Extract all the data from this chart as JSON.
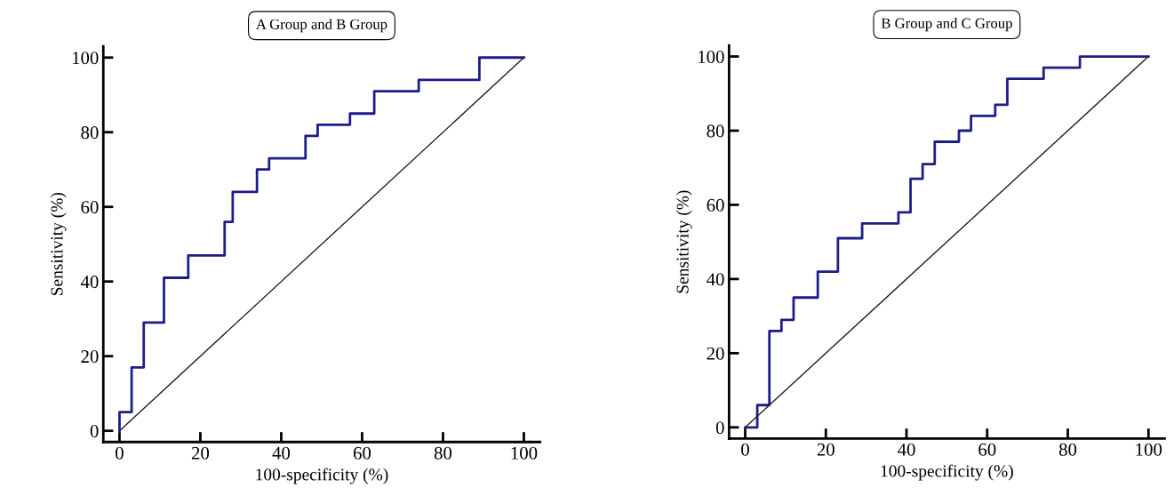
{
  "chart_data": [
    {
      "type": "step",
      "title": "A Group and B Group",
      "xlabel": "100-specificity (%)",
      "ylabel": "Sensitivity (%)",
      "xlim": [
        -4,
        104
      ],
      "ylim": [
        -3,
        103
      ],
      "xticks": [
        0,
        20,
        40,
        60,
        80,
        100
      ],
      "yticks": [
        0,
        20,
        40,
        60,
        80,
        100
      ],
      "grid": false,
      "legend": false,
      "series": [
        {
          "color": "#1c1c8a",
          "x": [
            0,
            0,
            3,
            6,
            11,
            17,
            26,
            28,
            34,
            37,
            46,
            49,
            57,
            63,
            74,
            89,
            100
          ],
          "values": [
            0,
            5,
            17,
            29,
            41,
            47,
            56,
            64,
            70,
            73,
            79,
            82,
            85,
            91,
            94,
            100,
            100
          ]
        },
        {
          "type": "line",
          "color": "#222222",
          "x": [
            0,
            100
          ],
          "values": [
            0,
            100
          ]
        }
      ]
    },
    {
      "type": "step",
      "title": "B Group and C Group",
      "xlabel": "100-specificity (%)",
      "ylabel": "Sensitivity (%)",
      "xlim": [
        -4,
        104
      ],
      "ylim": [
        -3,
        103
      ],
      "xticks": [
        0,
        20,
        40,
        60,
        80,
        100
      ],
      "yticks": [
        0,
        20,
        40,
        60,
        80,
        100
      ],
      "grid": false,
      "legend": false,
      "series": [
        {
          "color": "#1c1c8a",
          "x": [
            0,
            3,
            6,
            9,
            12,
            18,
            23,
            29,
            38,
            41,
            44,
            47,
            53,
            56,
            62,
            65,
            74,
            83,
            100
          ],
          "values": [
            0,
            6,
            26,
            29,
            35,
            42,
            51,
            55,
            58,
            67,
            71,
            77,
            80,
            84,
            87,
            94,
            97,
            100,
            100
          ]
        },
        {
          "type": "line",
          "color": "#222222",
          "x": [
            0,
            100
          ],
          "values": [
            0,
            100
          ]
        }
      ]
    }
  ]
}
